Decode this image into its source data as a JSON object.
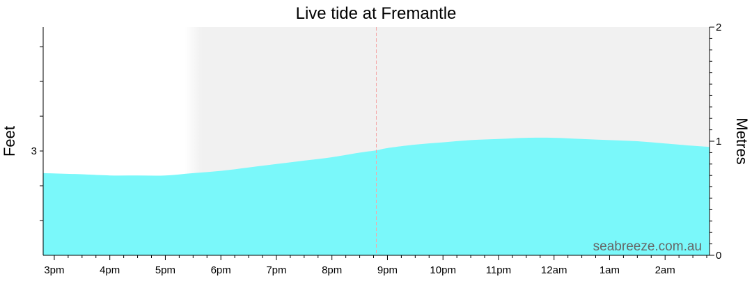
{
  "chart_data": {
    "type": "area",
    "title": "Live tide at Fremantle",
    "y_left_label": "Feet",
    "y_right_label": "Metres",
    "x_tick_labels": [
      "3pm",
      "4pm",
      "5pm",
      "6pm",
      "7pm",
      "8pm",
      "9pm",
      "10pm",
      "11pm",
      "12am",
      "1am",
      "2am"
    ],
    "x_range_hours": [
      14.8,
      26.8
    ],
    "night_start_hour": 17.5,
    "current_time_hour": 20.8,
    "y_right_range_m": [
      0,
      2
    ],
    "y_right_ticks_m": [
      0,
      1,
      2
    ],
    "y_left_ticks_ft": [
      3
    ],
    "series": [
      {
        "unit": "m",
        "x_hours": [
          14.8,
          15.5,
          16.0,
          16.5,
          17.0,
          17.5,
          18.0,
          18.5,
          19.0,
          19.5,
          20.0,
          20.5,
          20.8,
          21.0,
          21.5,
          22.0,
          22.5,
          23.0,
          23.5,
          24.0,
          24.5,
          25.0,
          25.5,
          26.0,
          26.5,
          26.8
        ],
        "values": [
          0.72,
          0.71,
          0.7,
          0.7,
          0.7,
          0.72,
          0.74,
          0.77,
          0.8,
          0.83,
          0.86,
          0.9,
          0.92,
          0.94,
          0.97,
          0.99,
          1.01,
          1.02,
          1.03,
          1.03,
          1.02,
          1.01,
          1.0,
          0.98,
          0.96,
          0.95
        ]
      }
    ],
    "colors": {
      "fill": "#7af8fa",
      "night_shade": "#f1f1f1",
      "now_line": "#f4a9a9"
    },
    "watermark": "seabreeze.com.au"
  }
}
